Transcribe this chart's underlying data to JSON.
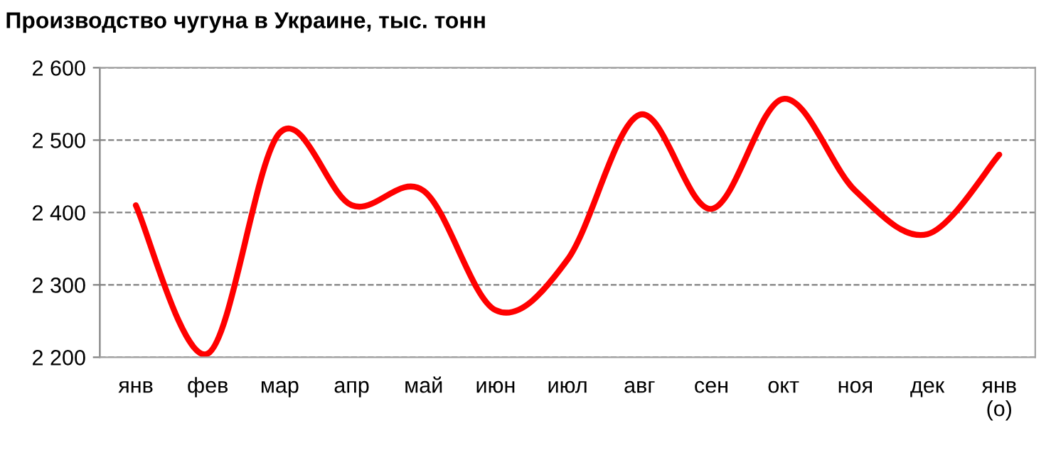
{
  "chart_data": {
    "type": "line",
    "title": "Производство чугуна в Украине, тыс. тонн",
    "categories": [
      "янв",
      "фев",
      "мар",
      "апр",
      "май",
      "июн",
      "июл",
      "авг",
      "сен",
      "окт",
      "ноя",
      "дек",
      "янв\n(о)"
    ],
    "series": [
      {
        "color": "#ff0000",
        "values": [
          2410,
          2205,
          2510,
          2410,
          2430,
          2265,
          2335,
          2535,
          2405,
          2557,
          2430,
          2370,
          2480
        ]
      }
    ],
    "ylim": [
      2200,
      2600
    ],
    "yticks": [
      {
        "value": 2200,
        "label": "2 200"
      },
      {
        "value": 2300,
        "label": "2 300"
      },
      {
        "value": 2400,
        "label": "2 400"
      },
      {
        "value": 2500,
        "label": "2 500"
      },
      {
        "value": 2600,
        "label": "2 600"
      }
    ],
    "grid": "y",
    "line_style": "solid",
    "marker": "none"
  }
}
